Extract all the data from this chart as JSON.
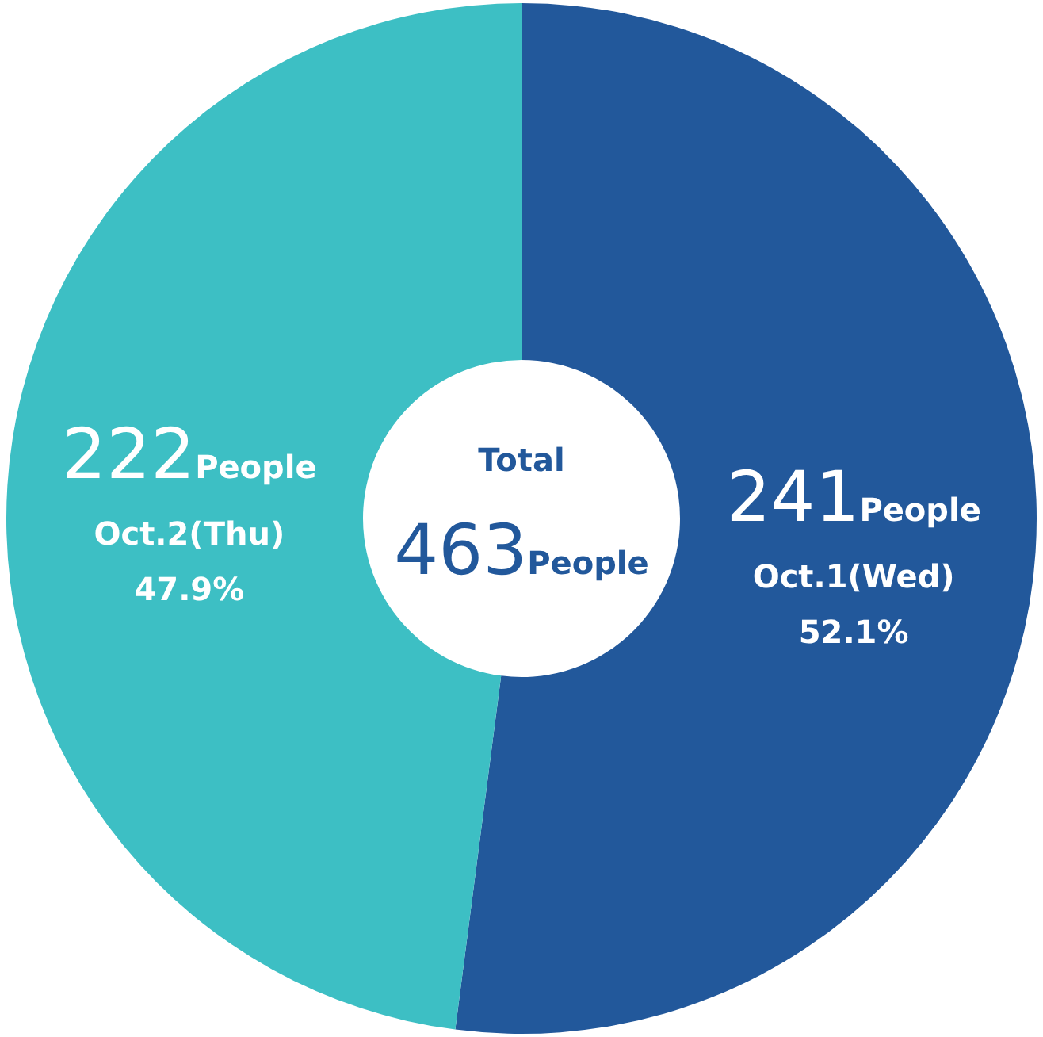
{
  "chart_data": {
    "type": "donut",
    "title": "Total",
    "subtitle": "463People",
    "categories": [
      "Oct.1(Wed)",
      "Oct.2(Thu)"
    ],
    "values": [
      241,
      222
    ],
    "colors": [
      "#22589b",
      "#3dbfc4"
    ],
    "value_labels": [
      "241People",
      "222People"
    ],
    "annotations": [
      "52.1%",
      "47.9%"
    ]
  }
}
